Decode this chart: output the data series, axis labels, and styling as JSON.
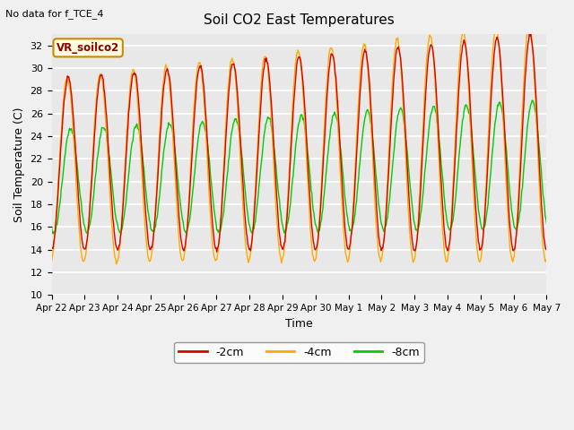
{
  "title": "Soil CO2 East Temperatures",
  "xlabel": "Time",
  "ylabel": "Soil Temperature (C)",
  "no_data_text": "No data for f_TCE_4",
  "legend_label": "VR_soilco2",
  "ylim": [
    10,
    33
  ],
  "yticks": [
    10,
    12,
    14,
    16,
    18,
    20,
    22,
    24,
    26,
    28,
    30,
    32
  ],
  "xtick_labels": [
    "Apr 22",
    "Apr 23",
    "Apr 24",
    "Apr 25",
    "Apr 26",
    "Apr 27",
    "Apr 28",
    "Apr 29",
    "Apr 30",
    "May 1",
    "May 2",
    "May 3",
    "May 4",
    "May 5",
    "May 6",
    "May 7"
  ],
  "line_colors": {
    "-2cm": "#dd0000",
    "-4cm": "#ffaa00",
    "-8cm": "#00cc00"
  },
  "fig_bg_color": "#f0f0f0",
  "plot_bg_color": "#e8e8e8",
  "n_days": 15,
  "samples_per_day": 48
}
